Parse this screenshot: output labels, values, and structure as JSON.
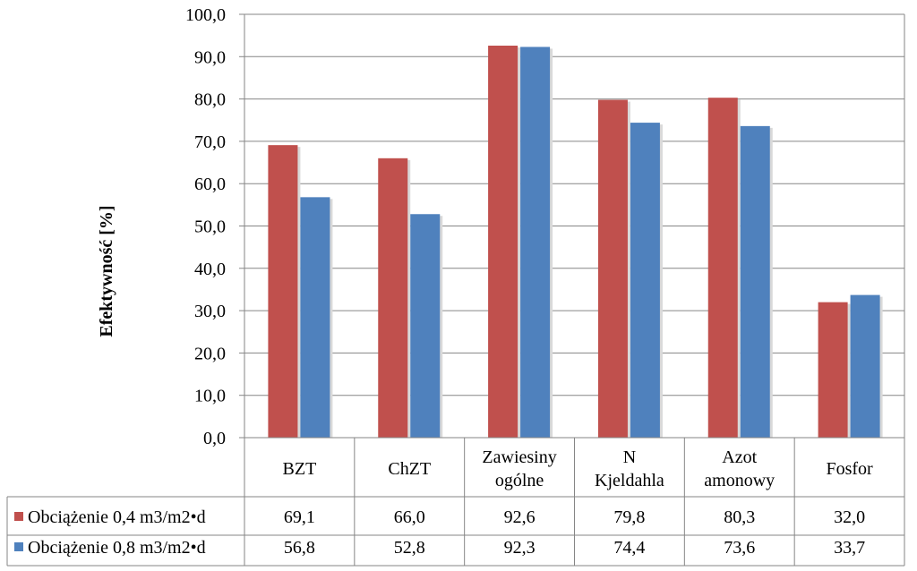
{
  "chart_data": {
    "type": "bar",
    "title": "",
    "xlabel": "",
    "ylabel": "Efektywność [%]",
    "ylim": [
      0,
      100
    ],
    "yticks": [
      "0,0",
      "10,0",
      "20,0",
      "30,0",
      "40,0",
      "50,0",
      "60,0",
      "70,0",
      "80,0",
      "90,0",
      "100,0"
    ],
    "ytick_values": [
      0,
      10,
      20,
      30,
      40,
      50,
      60,
      70,
      80,
      90,
      100
    ],
    "grid": true,
    "legend": "data-table",
    "categories": [
      [
        "BZT"
      ],
      [
        "ChZT"
      ],
      [
        "Zawiesiny",
        "ogólne"
      ],
      [
        "N",
        "Kjeldahla"
      ],
      [
        "Azot",
        "amonowy"
      ],
      [
        "Fosfor"
      ]
    ],
    "series": [
      {
        "name": "Obciążenie 0,4 m3/m2•d",
        "color": "#c0504d",
        "values": [
          69.1,
          66.0,
          92.6,
          79.8,
          80.3,
          32.0
        ],
        "labels": [
          "69,1",
          "66,0",
          "92,6",
          "79,8",
          "80,3",
          "32,0"
        ]
      },
      {
        "name": "Obciążenie 0,8 m3/m2•d",
        "color": "#4f81bd",
        "values": [
          56.8,
          52.8,
          92.3,
          74.4,
          73.6,
          33.7
        ],
        "labels": [
          "56,8",
          "52,8",
          "92,3",
          "74,4",
          "73,6",
          "33,7"
        ]
      }
    ]
  }
}
